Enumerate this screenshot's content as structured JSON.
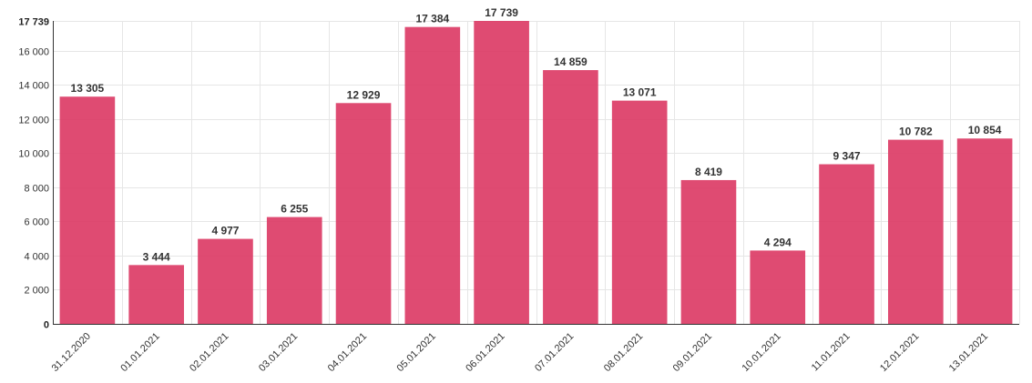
{
  "chart_data": {
    "type": "bar",
    "categories": [
      "31.12.2020",
      "01.01.2021",
      "02.01.2021",
      "03.01.2021",
      "04.01.2021",
      "05.01.2021",
      "06.01.2021",
      "07.01.2021",
      "08.01.2021",
      "09.01.2021",
      "10.01.2021",
      "11.01.2021",
      "12.01.2021",
      "13.01.2021"
    ],
    "values": [
      13305,
      3444,
      4977,
      6255,
      12929,
      17384,
      17739,
      14859,
      13071,
      8419,
      4294,
      9347,
      10782,
      10854
    ],
    "value_labels": [
      "13 305",
      "3 444",
      "4 977",
      "6 255",
      "12 929",
      "17 384",
      "17 739",
      "14 859",
      "13 071",
      "8 419",
      "4 294",
      "9 347",
      "10 782",
      "10 854"
    ],
    "yticks": [
      0,
      2000,
      4000,
      6000,
      8000,
      10000,
      12000,
      14000,
      16000,
      17739
    ],
    "ytick_labels": [
      "0",
      "2 000",
      "4 000",
      "6 000",
      "8 000",
      "10 000",
      "12 000",
      "14 000",
      "16 000",
      "17 739"
    ],
    "ylim": [
      0,
      17739
    ],
    "grid": true,
    "bar_color": "#dc3c66",
    "title": "",
    "xlabel": "",
    "ylabel": ""
  }
}
